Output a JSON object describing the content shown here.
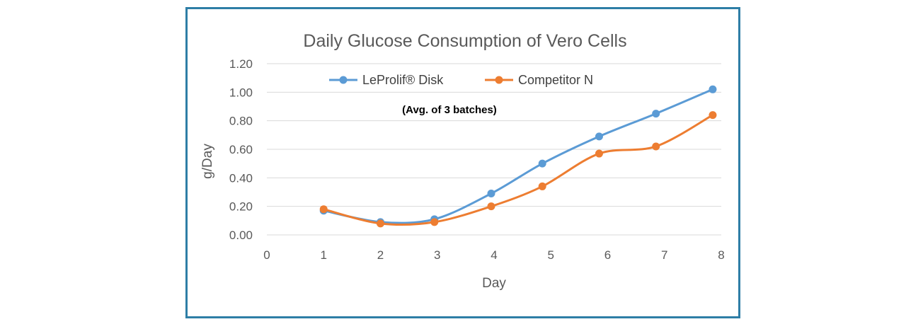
{
  "chart_data": {
    "type": "line",
    "title": "Daily Glucose Consumption of Vero Cells",
    "xlabel": "Day",
    "ylabel": "g/Day",
    "note": "(Avg. of 3 batches)",
    "xlim": [
      0,
      8
    ],
    "ylim": [
      0,
      1.2
    ],
    "x_ticks": [
      "0",
      "1",
      "2",
      "3",
      "4",
      "5",
      "6",
      "7",
      "8"
    ],
    "y_ticks": [
      "0.00",
      "0.20",
      "0.40",
      "0.60",
      "0.80",
      "1.00",
      "1.20"
    ],
    "grid": "horizontal",
    "legend_position": "top-left",
    "series": [
      {
        "name": "LeProlif® Disk",
        "color": "#5b9bd5",
        "x": [
          1,
          2,
          2.95,
          3.95,
          4.85,
          5.85,
          6.85,
          7.85
        ],
        "values": [
          0.17,
          0.09,
          0.11,
          0.29,
          0.5,
          0.69,
          0.85,
          1.02
        ]
      },
      {
        "name": "Competitor N",
        "color": "#ed7d31",
        "x": [
          1,
          2,
          2.95,
          3.95,
          4.85,
          5.85,
          6.85,
          7.85
        ],
        "values": [
          0.18,
          0.08,
          0.09,
          0.2,
          0.34,
          0.57,
          0.62,
          0.84
        ]
      }
    ]
  }
}
